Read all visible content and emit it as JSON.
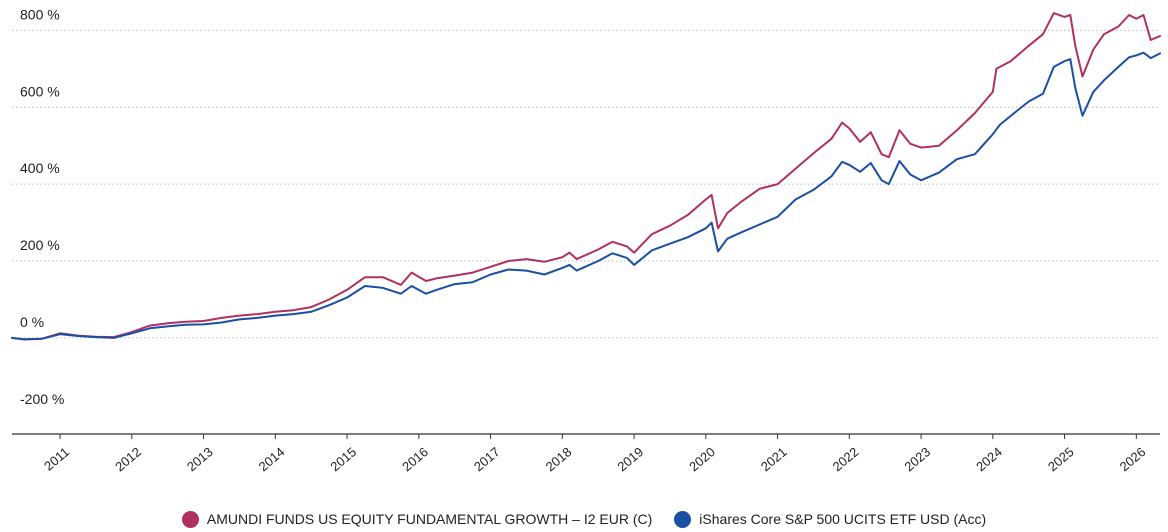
{
  "chart_data": {
    "type": "line",
    "title": "",
    "xlabel": "",
    "ylabel": "",
    "ylim": [
      -250,
      840
    ],
    "xlim": [
      2010.33,
      2026.33
    ],
    "y_ticks": [
      {
        "value": 800,
        "label": "800 %"
      },
      {
        "value": 600,
        "label": "600 %"
      },
      {
        "value": 400,
        "label": "400 %"
      },
      {
        "value": 200,
        "label": "200 %"
      },
      {
        "value": 0,
        "label": "0 %"
      },
      {
        "value": -200,
        "label": "-200 %"
      }
    ],
    "x_ticks": [
      {
        "value": 2011,
        "label": "2011"
      },
      {
        "value": 2012,
        "label": "2012"
      },
      {
        "value": 2013,
        "label": "2013"
      },
      {
        "value": 2014,
        "label": "2014"
      },
      {
        "value": 2015,
        "label": "2015"
      },
      {
        "value": 2016,
        "label": "2016"
      },
      {
        "value": 2017,
        "label": "2017"
      },
      {
        "value": 2018,
        "label": "2018"
      },
      {
        "value": 2019,
        "label": "2019"
      },
      {
        "value": 2020,
        "label": "2020"
      },
      {
        "value": 2021,
        "label": "2021"
      },
      {
        "value": 2022,
        "label": "2022"
      },
      {
        "value": 2023,
        "label": "2023"
      },
      {
        "value": 2024,
        "label": "2024"
      },
      {
        "value": 2025,
        "label": "2025"
      },
      {
        "value": 2026,
        "label": "2026"
      }
    ],
    "grid": true,
    "legend_position": "bottom",
    "series": [
      {
        "name": "AMUNDI FUNDS US EQUITY FUNDAMENTAL GROWTH – I2 EUR (C)",
        "color": "#b0305f",
        "points": [
          [
            2010.33,
            0
          ],
          [
            2010.5,
            -4
          ],
          [
            2010.75,
            -2
          ],
          [
            2011.0,
            12
          ],
          [
            2011.25,
            6
          ],
          [
            2011.5,
            3
          ],
          [
            2011.75,
            2
          ],
          [
            2012.0,
            15
          ],
          [
            2012.25,
            32
          ],
          [
            2012.5,
            38
          ],
          [
            2012.75,
            42
          ],
          [
            2013.0,
            44
          ],
          [
            2013.25,
            52
          ],
          [
            2013.5,
            58
          ],
          [
            2013.75,
            62
          ],
          [
            2014.0,
            68
          ],
          [
            2014.25,
            72
          ],
          [
            2014.5,
            80
          ],
          [
            2014.75,
            100
          ],
          [
            2015.0,
            125
          ],
          [
            2015.25,
            158
          ],
          [
            2015.5,
            158
          ],
          [
            2015.75,
            138
          ],
          [
            2015.9,
            170
          ],
          [
            2016.1,
            148
          ],
          [
            2016.25,
            155
          ],
          [
            2016.5,
            162
          ],
          [
            2016.75,
            170
          ],
          [
            2017.0,
            185
          ],
          [
            2017.25,
            200
          ],
          [
            2017.5,
            205
          ],
          [
            2017.75,
            198
          ],
          [
            2018.0,
            210
          ],
          [
            2018.1,
            222
          ],
          [
            2018.2,
            205
          ],
          [
            2018.5,
            230
          ],
          [
            2018.7,
            250
          ],
          [
            2018.9,
            238
          ],
          [
            2019.0,
            222
          ],
          [
            2019.25,
            270
          ],
          [
            2019.5,
            292
          ],
          [
            2019.75,
            320
          ],
          [
            2020.0,
            360
          ],
          [
            2020.08,
            372
          ],
          [
            2020.17,
            285
          ],
          [
            2020.3,
            325
          ],
          [
            2020.5,
            355
          ],
          [
            2020.75,
            388
          ],
          [
            2021.0,
            400
          ],
          [
            2021.25,
            440
          ],
          [
            2021.5,
            480
          ],
          [
            2021.75,
            518
          ],
          [
            2021.9,
            560
          ],
          [
            2022.0,
            545
          ],
          [
            2022.15,
            510
          ],
          [
            2022.3,
            535
          ],
          [
            2022.45,
            478
          ],
          [
            2022.55,
            470
          ],
          [
            2022.7,
            540
          ],
          [
            2022.85,
            505
          ],
          [
            2023.0,
            495
          ],
          [
            2023.25,
            500
          ],
          [
            2023.5,
            540
          ],
          [
            2023.75,
            585
          ],
          [
            2024.0,
            640
          ],
          [
            2024.05,
            700
          ],
          [
            2024.25,
            720
          ],
          [
            2024.5,
            760
          ],
          [
            2024.7,
            790
          ],
          [
            2024.85,
            845
          ],
          [
            2025.0,
            835
          ],
          [
            2025.08,
            840
          ],
          [
            2025.15,
            760
          ],
          [
            2025.25,
            680
          ],
          [
            2025.4,
            750
          ],
          [
            2025.55,
            790
          ],
          [
            2025.75,
            810
          ],
          [
            2025.9,
            840
          ],
          [
            2026.0,
            830
          ],
          [
            2026.1,
            840
          ],
          [
            2026.2,
            775
          ],
          [
            2026.33,
            785
          ]
        ]
      },
      {
        "name": "iShares Core S&P 500 UCITS ETF USD (Acc)",
        "color": "#1a4fa3",
        "points": [
          [
            2010.33,
            0
          ],
          [
            2010.5,
            -4
          ],
          [
            2010.75,
            -2
          ],
          [
            2011.0,
            10
          ],
          [
            2011.25,
            5
          ],
          [
            2011.5,
            2
          ],
          [
            2011.75,
            0
          ],
          [
            2012.0,
            12
          ],
          [
            2012.25,
            25
          ],
          [
            2012.5,
            30
          ],
          [
            2012.75,
            34
          ],
          [
            2013.0,
            35
          ],
          [
            2013.25,
            40
          ],
          [
            2013.5,
            48
          ],
          [
            2013.75,
            52
          ],
          [
            2014.0,
            58
          ],
          [
            2014.25,
            62
          ],
          [
            2014.5,
            68
          ],
          [
            2014.75,
            85
          ],
          [
            2015.0,
            105
          ],
          [
            2015.25,
            135
          ],
          [
            2015.5,
            130
          ],
          [
            2015.75,
            115
          ],
          [
            2015.9,
            135
          ],
          [
            2016.1,
            115
          ],
          [
            2016.25,
            125
          ],
          [
            2016.5,
            140
          ],
          [
            2016.75,
            145
          ],
          [
            2017.0,
            165
          ],
          [
            2017.25,
            178
          ],
          [
            2017.5,
            175
          ],
          [
            2017.75,
            165
          ],
          [
            2018.0,
            182
          ],
          [
            2018.1,
            190
          ],
          [
            2018.2,
            175
          ],
          [
            2018.5,
            200
          ],
          [
            2018.7,
            220
          ],
          [
            2018.9,
            208
          ],
          [
            2019.0,
            190
          ],
          [
            2019.25,
            228
          ],
          [
            2019.5,
            245
          ],
          [
            2019.75,
            262
          ],
          [
            2020.0,
            285
          ],
          [
            2020.08,
            300
          ],
          [
            2020.17,
            225
          ],
          [
            2020.3,
            258
          ],
          [
            2020.5,
            275
          ],
          [
            2020.75,
            295
          ],
          [
            2021.0,
            315
          ],
          [
            2021.25,
            360
          ],
          [
            2021.5,
            385
          ],
          [
            2021.75,
            420
          ],
          [
            2021.9,
            458
          ],
          [
            2022.0,
            450
          ],
          [
            2022.15,
            432
          ],
          [
            2022.3,
            455
          ],
          [
            2022.45,
            410
          ],
          [
            2022.55,
            400
          ],
          [
            2022.7,
            460
          ],
          [
            2022.85,
            425
          ],
          [
            2023.0,
            410
          ],
          [
            2023.25,
            430
          ],
          [
            2023.5,
            465
          ],
          [
            2023.75,
            478
          ],
          [
            2024.0,
            530
          ],
          [
            2024.1,
            555
          ],
          [
            2024.3,
            585
          ],
          [
            2024.5,
            615
          ],
          [
            2024.7,
            635
          ],
          [
            2024.85,
            705
          ],
          [
            2025.0,
            720
          ],
          [
            2025.08,
            725
          ],
          [
            2025.15,
            650
          ],
          [
            2025.25,
            578
          ],
          [
            2025.4,
            640
          ],
          [
            2025.55,
            670
          ],
          [
            2025.75,
            705
          ],
          [
            2025.9,
            730
          ],
          [
            2026.0,
            735
          ],
          [
            2026.1,
            742
          ],
          [
            2026.2,
            728
          ],
          [
            2026.33,
            740
          ]
        ]
      }
    ]
  }
}
